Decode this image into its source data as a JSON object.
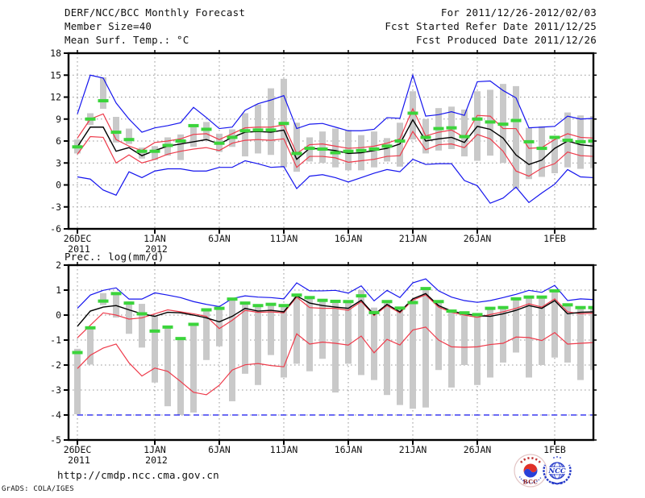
{
  "header": {
    "left": [
      "DERF/NCC/BCC Monthly Forecast",
      "Member Size=40"
    ],
    "right": [
      "For 2011/12/26-2012/02/03",
      "Fcst Started Refer Date 2011/12/25",
      "Fcst Produced Date 2011/12/26"
    ]
  },
  "footer": {
    "url": "http://cmdp.ncc.cma.gov.cn",
    "credit": "GrADS: COLA/IGES"
  },
  "logos": {
    "bcc_label": "BCC",
    "ncc_label": "NCC"
  },
  "colors": {
    "blue": "#1515ee",
    "red": "#ee3a4a",
    "black": "#000000",
    "green": "#3bd43b",
    "bar": "#c9c9c9",
    "grid": "#999999",
    "frame": "#000000",
    "text": "#111111"
  },
  "chart_data": [
    {
      "type": "line",
      "name": "mean-surface-temperature",
      "title": "Mean Surf. Temp.: °C",
      "xlabel": "",
      "ylabel": "°C",
      "ylim": [
        -6,
        18
      ],
      "yticks": [
        18,
        15,
        12,
        9,
        6,
        3,
        0,
        -3,
        -6
      ],
      "grid": true,
      "x_ticks": [
        {
          "day": 1,
          "label": "26DEC",
          "sub": "2011"
        },
        {
          "day": 7,
          "label": "1JAN",
          "sub": "2012"
        },
        {
          "day": 12,
          "label": "6JAN"
        },
        {
          "day": 17,
          "label": "11JAN"
        },
        {
          "day": 22,
          "label": "16JAN"
        },
        {
          "day": 27,
          "label": "21JAN"
        },
        {
          "day": 32,
          "label": "26JAN"
        },
        {
          "day": 38,
          "label": "1FEB"
        }
      ],
      "series": [
        {
          "name": "ensemble-max",
          "color": "blue",
          "values": [
            9.7,
            15.0,
            14.6,
            11.2,
            9.0,
            7.2,
            7.8,
            8.1,
            8.5,
            10.6,
            9.2,
            7.7,
            7.9,
            10.2,
            11.1,
            11.6,
            12.2,
            7.7,
            8.3,
            8.4,
            7.9,
            7.4,
            7.4,
            7.6,
            9.2,
            9.1,
            15.0,
            9.4,
            9.6,
            10.0,
            9.5,
            14.1,
            14.2,
            12.9,
            11.9,
            7.8,
            7.9,
            8.0,
            9.4,
            9.0,
            9.1
          ]
        },
        {
          "name": "ensemble-min",
          "color": "blue",
          "values": [
            1.1,
            0.8,
            -0.7,
            -1.4,
            1.8,
            1.0,
            1.9,
            2.2,
            2.2,
            1.9,
            1.9,
            2.4,
            2.4,
            3.3,
            2.9,
            2.4,
            2.5,
            -0.5,
            1.2,
            1.4,
            1.0,
            0.4,
            1.0,
            1.6,
            2.1,
            1.8,
            3.5,
            2.8,
            2.9,
            2.9,
            0.6,
            -0.1,
            -2.5,
            -1.8,
            -0.3,
            -2.4,
            -1.1,
            0.1,
            2.1,
            1.1,
            1.0
          ]
        },
        {
          "name": "mean-plus-spread",
          "color": "red",
          "values": [
            6.4,
            9.0,
            9.7,
            6.2,
            5.3,
            4.7,
            5.8,
            6.0,
            6.3,
            6.9,
            7.0,
            6.2,
            7.0,
            7.8,
            7.9,
            7.9,
            8.2,
            4.3,
            5.5,
            5.6,
            5.3,
            5.0,
            5.1,
            5.3,
            5.7,
            6.3,
            10.4,
            6.7,
            7.2,
            7.5,
            6.5,
            9.5,
            9.4,
            7.7,
            7.7,
            5.0,
            5.1,
            6.2,
            7.0,
            6.5,
            6.4
          ]
        },
        {
          "name": "mean-minus-spread",
          "color": "red",
          "values": [
            4.2,
            6.6,
            6.5,
            3.0,
            4.1,
            3.0,
            3.5,
            4.2,
            4.6,
            4.9,
            5.1,
            4.7,
            5.7,
            6.1,
            6.2,
            6.1,
            6.3,
            2.4,
            3.9,
            3.9,
            3.7,
            3.1,
            3.3,
            3.5,
            3.9,
            4.0,
            7.3,
            4.8,
            5.5,
            5.6,
            5.1,
            6.9,
            6.3,
            4.6,
            1.9,
            1.2,
            2.3,
            2.9,
            4.5,
            4.0,
            3.9
          ]
        },
        {
          "name": "ensemble-mean",
          "color": "black",
          "values": [
            5.2,
            7.9,
            7.9,
            4.6,
            5.1,
            4.0,
            4.7,
            5.3,
            5.6,
            5.9,
            6.2,
            5.6,
            6.5,
            7.2,
            7.3,
            7.2,
            7.5,
            3.5,
            5.0,
            4.9,
            4.7,
            4.3,
            4.4,
            4.7,
            5.0,
            5.6,
            8.9,
            6.0,
            6.3,
            6.5,
            5.8,
            8.0,
            7.6,
            6.4,
            4.1,
            2.8,
            3.4,
            5.0,
            6.0,
            5.5,
            5.3
          ]
        },
        {
          "name": "observation",
          "color": "green",
          "type": "dashes",
          "values": [
            5.2,
            9.0,
            11.5,
            7.2,
            6.2,
            4.6,
            4.6,
            5.4,
            6.0,
            8.1,
            7.6,
            5.7,
            6.5,
            7.4,
            7.5,
            7.5,
            8.4,
            4.3,
            5.0,
            4.9,
            4.4,
            4.6,
            4.7,
            4.9,
            5.3,
            6.0,
            9.8,
            6.5,
            7.7,
            7.8,
            6.6,
            9.0,
            8.6,
            8.3,
            8.8,
            5.9,
            5.0,
            6.5,
            6.1,
            5.9,
            6.0
          ]
        }
      ],
      "bars": {
        "name": "member-spread",
        "color": "bar",
        "hi": [
          6.2,
          9.8,
          14.7,
          9.3,
          7.7,
          5.1,
          5.3,
          6.5,
          6.9,
          7.9,
          8.6,
          7.0,
          7.6,
          9.8,
          11.0,
          13.2,
          14.5,
          8.5,
          6.5,
          7.3,
          7.7,
          7.5,
          6.8,
          7.3,
          6.4,
          8.5,
          12.8,
          9.0,
          10.5,
          10.7,
          10.3,
          12.8,
          13.0,
          13.8,
          13.5,
          7.8,
          8.0,
          6.3,
          9.9,
          9.5,
          9.4
        ],
        "lo": [
          4.3,
          8.2,
          10.4,
          5.8,
          5.6,
          3.6,
          3.4,
          4.0,
          3.4,
          5.2,
          6.1,
          4.5,
          5.2,
          3.9,
          4.3,
          4.1,
          2.4,
          1.8,
          3.2,
          3.0,
          2.4,
          2.0,
          2.0,
          2.4,
          3.2,
          2.5,
          6.2,
          4.3,
          4.7,
          4.9,
          3.9,
          3.3,
          4.0,
          3.0,
          -0.5,
          0.8,
          1.1,
          1.6,
          2.4,
          2.2,
          2.3
        ]
      }
    },
    {
      "type": "line",
      "name": "precipitation-log",
      "title": "Prec.: log(mm/d)",
      "xlabel": "",
      "ylabel": "log(mm/d)",
      "ylim": [
        -5,
        2
      ],
      "yticks": [
        2,
        1,
        0,
        -1,
        -2,
        -3,
        -4,
        -5
      ],
      "grid": true,
      "x_ticks": [
        {
          "day": 1,
          "label": "26DEC",
          "sub": "2011"
        },
        {
          "day": 7,
          "label": "1JAN",
          "sub": "2012"
        },
        {
          "day": 12,
          "label": "6JAN"
        },
        {
          "day": 17,
          "label": "11JAN"
        },
        {
          "day": 22,
          "label": "16JAN"
        },
        {
          "day": 27,
          "label": "21JAN"
        },
        {
          "day": 32,
          "label": "26JAN"
        },
        {
          "day": 38,
          "label": "1FEB"
        }
      ],
      "series": [
        {
          "name": "ensemble-max",
          "color": "blue",
          "values": [
            0.27,
            0.8,
            0.99,
            1.09,
            0.64,
            0.64,
            0.89,
            0.8,
            0.7,
            0.54,
            0.43,
            0.34,
            0.66,
            0.77,
            0.72,
            0.7,
            0.65,
            1.29,
            0.97,
            0.97,
            0.99,
            0.88,
            1.17,
            0.57,
            0.99,
            0.7,
            1.29,
            1.45,
            0.97,
            0.72,
            0.58,
            0.51,
            0.58,
            0.7,
            0.83,
            0.99,
            0.91,
            1.19,
            0.58,
            0.65,
            0.62
          ]
        },
        {
          "name": "ensemble-min",
          "color": "blue",
          "dashed": true,
          "values": [
            -4,
            -4,
            -4,
            -4,
            -4,
            -4,
            -4,
            -4,
            -4,
            -4,
            -4,
            -4,
            -4,
            -4,
            -4,
            -4,
            -4,
            -4,
            -4,
            -4,
            -4,
            -4,
            -4,
            -4,
            -4,
            -4,
            -4,
            -4,
            -4,
            -4,
            -4,
            -4,
            -4,
            -4,
            -4,
            -4,
            -4,
            -4,
            -4,
            -4,
            -4
          ]
        },
        {
          "name": "mean-plus-spread",
          "color": "red",
          "values": [
            -0.91,
            -0.41,
            0.09,
            0,
            -0.16,
            -0.11,
            0.05,
            0.21,
            0.13,
            0.05,
            -0.05,
            -0.54,
            -0.21,
            0.19,
            0.11,
            0.13,
            0.09,
            0.72,
            0.3,
            0.27,
            0.27,
            0.19,
            0.54,
            -0.02,
            0.38,
            0.09,
            0.6,
            0.81,
            0.32,
            0.11,
            0,
            -0.09,
            0.02,
            0.13,
            0.27,
            0.45,
            0.32,
            0.65,
            0.13,
            0.05,
            0.08
          ]
        },
        {
          "name": "mean-minus-spread",
          "color": "red",
          "values": [
            -2.14,
            -1.61,
            -1.32,
            -1.16,
            -1.91,
            -2.44,
            -2.12,
            -2.25,
            -2.66,
            -3.09,
            -3.19,
            -2.81,
            -2.2,
            -1.99,
            -1.94,
            -2.02,
            -2.07,
            -0.75,
            -1.16,
            -1.08,
            -1.13,
            -1.2,
            -0.84,
            -1.51,
            -0.97,
            -1.2,
            -0.6,
            -0.48,
            -1.0,
            -1.27,
            -1.29,
            -1.27,
            -1.18,
            -1.13,
            -0.88,
            -0.9,
            -1.02,
            -0.7,
            -1.16,
            -1.13,
            -1.1
          ]
        },
        {
          "name": "ensemble-mean",
          "color": "black",
          "values": [
            -0.45,
            0.16,
            0.32,
            0.38,
            0.21,
            0.05,
            -0.05,
            0.11,
            0.09,
            0,
            -0.11,
            -0.27,
            -0.05,
            0.27,
            0.16,
            0.19,
            0.13,
            0.77,
            0.48,
            0.38,
            0.32,
            0.27,
            0.59,
            0.02,
            0.43,
            0.13,
            0.65,
            0.86,
            0.38,
            0.16,
            0.05,
            -0.02,
            -0.05,
            0.05,
            0.19,
            0.38,
            0.27,
            0.58,
            0.05,
            0.11,
            0.13
          ]
        },
        {
          "name": "observation",
          "color": "green",
          "type": "dashes",
          "values": [
            -1.5,
            -0.51,
            0.56,
            0.86,
            0.48,
            0.05,
            -0.64,
            -0.48,
            -0.94,
            -0.37,
            0.21,
            0.27,
            0.64,
            0.48,
            0.38,
            0.43,
            0.38,
            0.8,
            0.7,
            0.59,
            0.55,
            0.54,
            0.77,
            0.1,
            0.54,
            0.28,
            0.5,
            1.06,
            0.54,
            0.16,
            0.09,
            0.02,
            0.27,
            0.3,
            0.65,
            0.72,
            0.72,
            0.97,
            0.41,
            0.3,
            0.3
          ]
        }
      ],
      "bars": {
        "name": "member-spread",
        "color": "bar",
        "hi": [
          -1.35,
          -0.5,
          0.88,
          0.88,
          0.55,
          0.45,
          -0.05,
          -0.45,
          -0.9,
          -0.35,
          0.25,
          0.3,
          0.65,
          0.5,
          0.4,
          0.45,
          0.4,
          0.85,
          0.72,
          0.6,
          0.6,
          0.55,
          1.0,
          0.3,
          0.55,
          0.3,
          0.6,
          1.1,
          0.55,
          0.2,
          0.1,
          0.05,
          0.3,
          0.35,
          0.7,
          0.75,
          0.75,
          1.0,
          0.45,
          0.35,
          0.32
        ],
        "lo": [
          -3.97,
          -1.98,
          0.4,
          -0.1,
          -0.75,
          -1.3,
          -2.7,
          -3.65,
          -4.0,
          -3.9,
          -1.8,
          -1.25,
          -3.45,
          -2.35,
          -2.8,
          -1.6,
          -2.5,
          -1.95,
          -2.25,
          -1.75,
          -3.1,
          -1.95,
          -2.4,
          -2.6,
          -3.2,
          -3.6,
          -3.75,
          -3.7,
          -2.2,
          -2.9,
          -2.0,
          -2.8,
          -2.5,
          -1.9,
          -1.5,
          -2.5,
          -2.0,
          -1.7,
          -1.9,
          -2.6,
          -2.2
        ]
      }
    }
  ]
}
